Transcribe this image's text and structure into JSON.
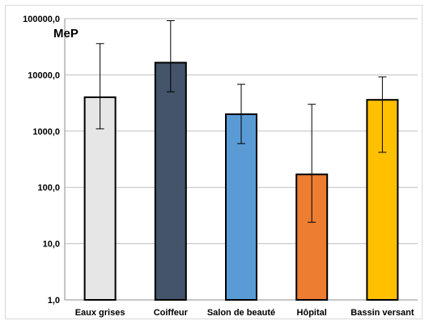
{
  "chart_data": {
    "type": "bar",
    "title": "MeP",
    "xlabel": "",
    "ylabel": "",
    "scale": "log",
    "ylim": [
      1,
      100000
    ],
    "grid": true,
    "y_tick_labels": [
      "1,0",
      "10,0",
      "100,0",
      "1000,0",
      "10000,0",
      "100000,0"
    ],
    "categories": [
      "Eaux grises",
      "Coiffeur",
      "Salon de beauté",
      "Hôpital",
      "Bassin versant"
    ],
    "values": [
      4000,
      16500,
      2000,
      170,
      3600
    ],
    "error_low": [
      1100,
      5000,
      600,
      24,
      420
    ],
    "error_high": [
      36000,
      92000,
      6800,
      3000,
      9200
    ],
    "colors": [
      "#e6e6e6",
      "#44546a",
      "#5b9bd5",
      "#ed7d31",
      "#ffc000"
    ]
  }
}
